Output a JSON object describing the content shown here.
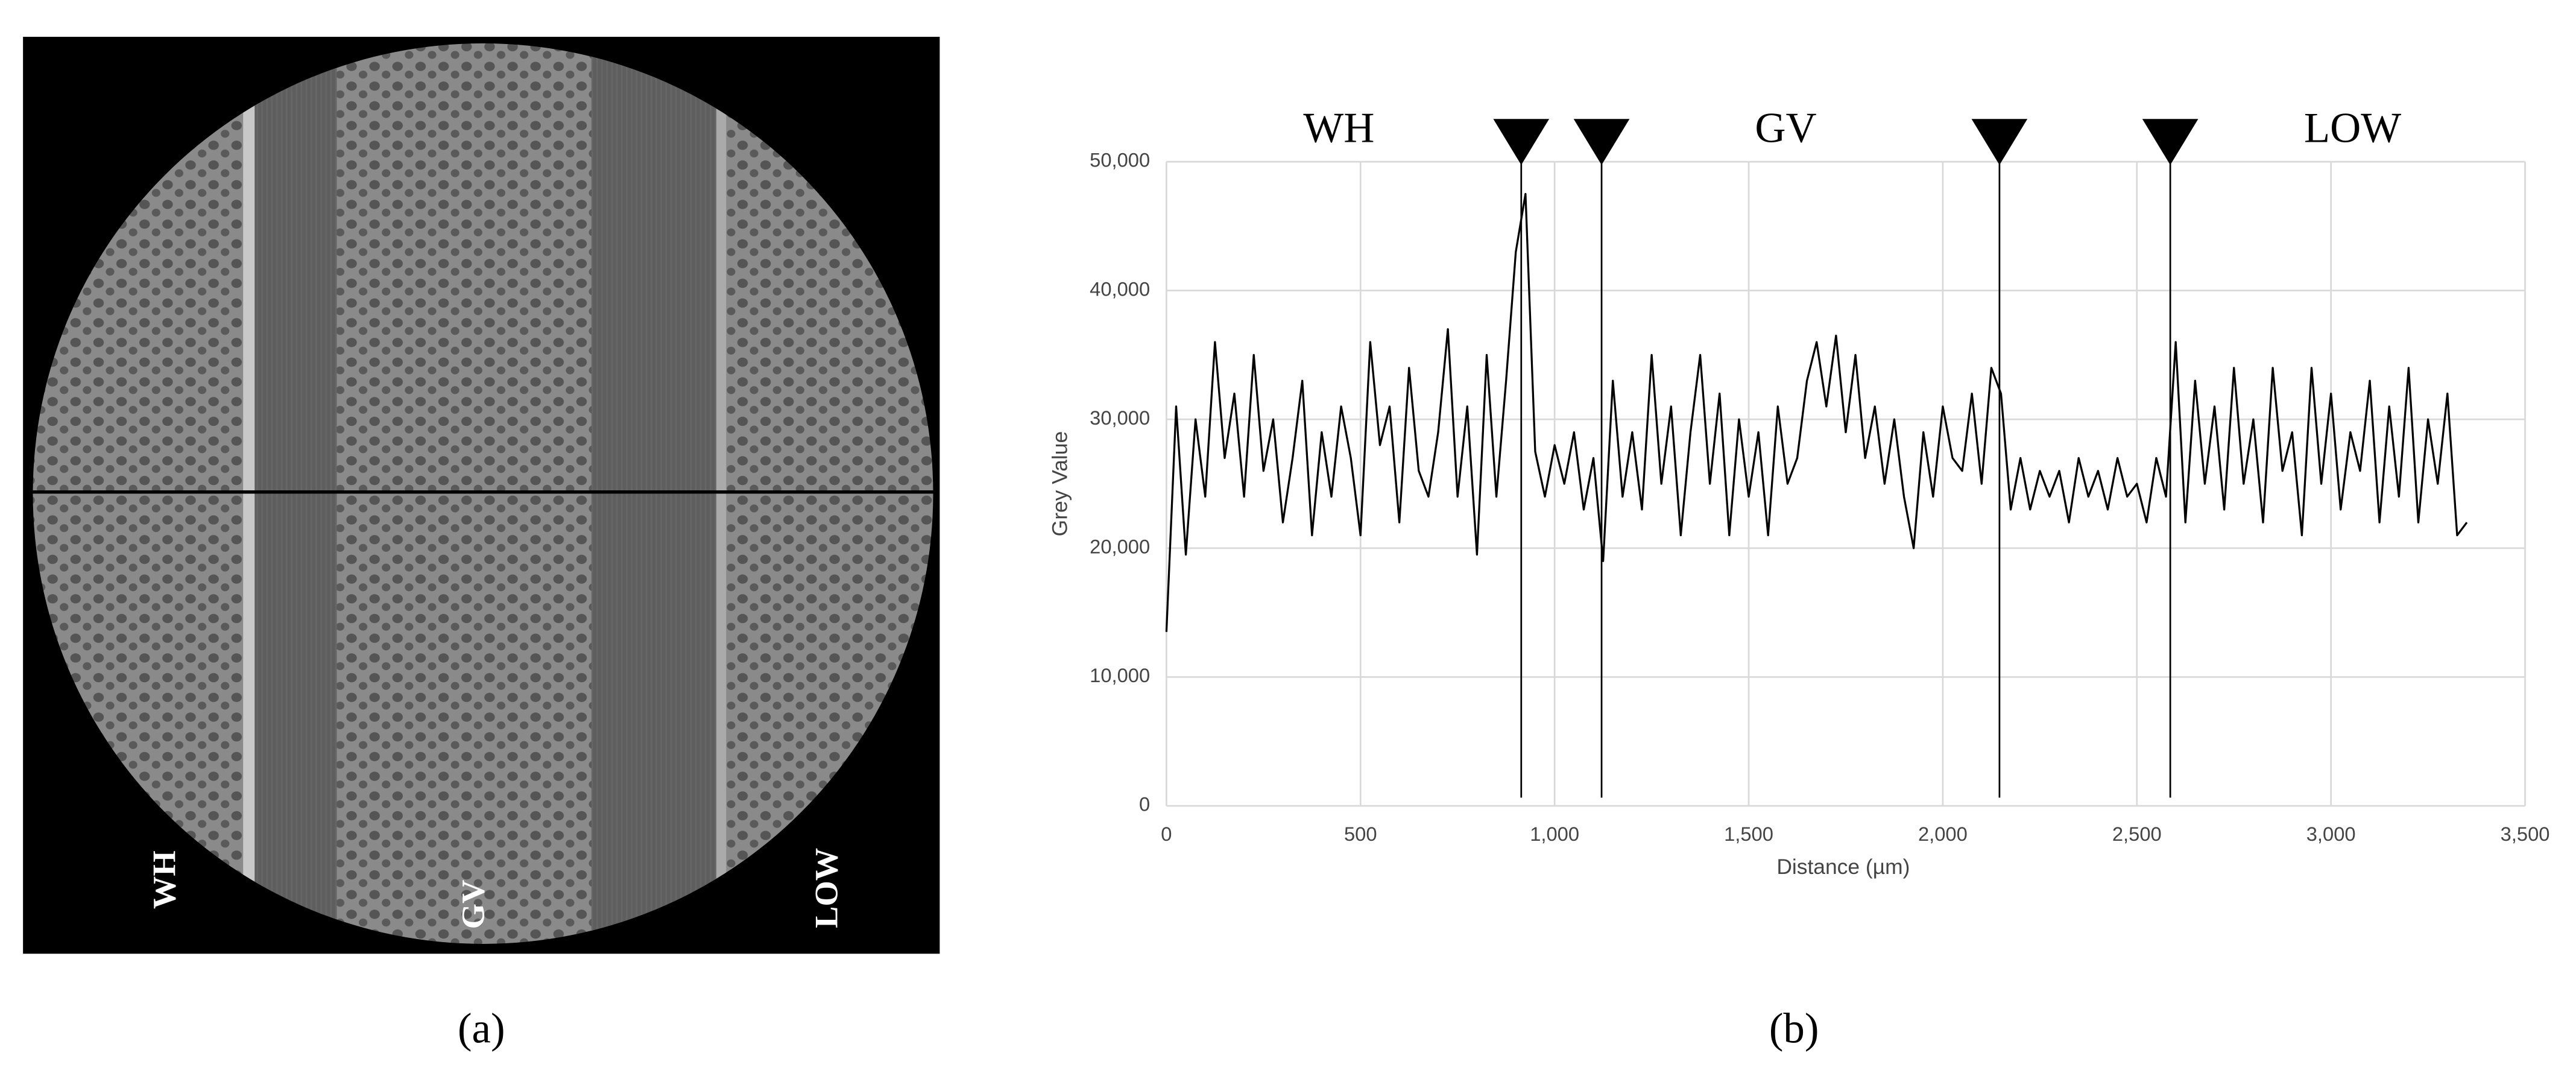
{
  "chart_data": {
    "type": "line",
    "annotations": [
      "WH",
      "GV",
      "LOW"
    ],
    "x_label": "Distance (µm)",
    "y_label": "Grey Value",
    "color": "#000000",
    "x": [
      0,
      25,
      50,
      75,
      100,
      125,
      150,
      175,
      200,
      225,
      250,
      275,
      300,
      325,
      350,
      375,
      400,
      425,
      450,
      475,
      500,
      525,
      550,
      575,
      600,
      625,
      650,
      675,
      700,
      725,
      750,
      775,
      800,
      825,
      850,
      875,
      900,
      925,
      950,
      975,
      1000,
      1025,
      1050,
      1075,
      1100,
      1125,
      1150,
      1175,
      1200,
      1225,
      1250,
      1275,
      1300,
      1325,
      1350,
      1375,
      1400,
      1425,
      1450,
      1475,
      1500,
      1525,
      1550,
      1575,
      1600,
      1625,
      1650,
      1675,
      1700,
      1725,
      1750,
      1775,
      1800,
      1825,
      1850,
      1875,
      1900,
      1925,
      1950,
      1975,
      2000,
      2025,
      2050,
      2075,
      2100,
      2125,
      2150,
      2175,
      2200,
      2225,
      2250,
      2275,
      2300,
      2325,
      2350,
      2375,
      2400,
      2425,
      2450,
      2475,
      2500,
      2525,
      2550,
      2575,
      2600,
      2625,
      2650,
      2675,
      2700,
      2725,
      2750,
      2775,
      2800,
      2825,
      2850,
      2875,
      2900,
      2925,
      2950,
      2975,
      3000,
      3025,
      3050,
      3075,
      3100,
      3125,
      3150,
      3175,
      3200,
      3225,
      3250,
      3275,
      3300,
      3325,
      3350
    ],
    "values": [
      13500,
      31000,
      19500,
      30000,
      24000,
      36000,
      27000,
      32000,
      24000,
      35000,
      26000,
      30000,
      22000,
      27000,
      33000,
      21000,
      29000,
      24000,
      31000,
      27000,
      21000,
      36000,
      28000,
      31000,
      22000,
      34000,
      26000,
      24000,
      29000,
      37000,
      24000,
      31000,
      19500,
      35000,
      24000,
      33000,
      43000,
      47500,
      27500,
      24000,
      28000,
      25000,
      29000,
      23000,
      27000,
      19000,
      33000,
      24000,
      29000,
      23000,
      35000,
      25000,
      31000,
      21000,
      29000,
      35000,
      25000,
      32000,
      21000,
      30000,
      24000,
      29000,
      21000,
      31000,
      25000,
      27000,
      33000,
      36000,
      31000,
      36500,
      29000,
      35000,
      27000,
      31000,
      25000,
      30000,
      24000,
      20000,
      29000,
      24000,
      31000,
      27000,
      26000,
      32000,
      25000,
      34000,
      32000,
      23000,
      27000,
      23000,
      26000,
      24000,
      26000,
      22000,
      27000,
      24000,
      26000,
      23000,
      27000,
      24000,
      25000,
      22000,
      27000,
      24000,
      36000,
      22000,
      33000,
      25000,
      31000,
      23000,
      34000,
      25000,
      30000,
      22000,
      34000,
      26000,
      29000,
      21000,
      34000,
      25000,
      32000,
      23000,
      29000,
      26000,
      33000,
      22000,
      31000,
      24000,
      34000,
      22000,
      30000,
      25000,
      32000,
      21000,
      22000
    ],
    "markers": [
      914,
      1121,
      2146,
      2586
    ],
    "xlim": [
      0,
      3500
    ],
    "ylim": [
      0,
      50000
    ],
    "xticks": [
      0,
      500,
      {
        "value": 1000,
        "label": "1,000"
      },
      {
        "value": 1500,
        "label": "1,500"
      },
      {
        "value": 2000,
        "label": "2,000"
      },
      {
        "value": 2500,
        "label": "2,500"
      },
      {
        "value": 3000,
        "label": "3,000"
      },
      {
        "value": 3500,
        "label": "3,500"
      }
    ],
    "yticks": [
      0,
      {
        "value": 10000,
        "label": "10,000"
      },
      {
        "value": 20000,
        "label": "20,000"
      },
      {
        "value": 30000,
        "label": "30,000"
      },
      {
        "value": 40000,
        "label": "40,000"
      },
      {
        "value": 50000,
        "label": "50,000"
      }
    ],
    "grid": true
  },
  "figure": {
    "panel_a_label": "(a)",
    "panel_b_label": "(b)",
    "image_labels": [
      "WH",
      "GV",
      "LOW"
    ]
  }
}
